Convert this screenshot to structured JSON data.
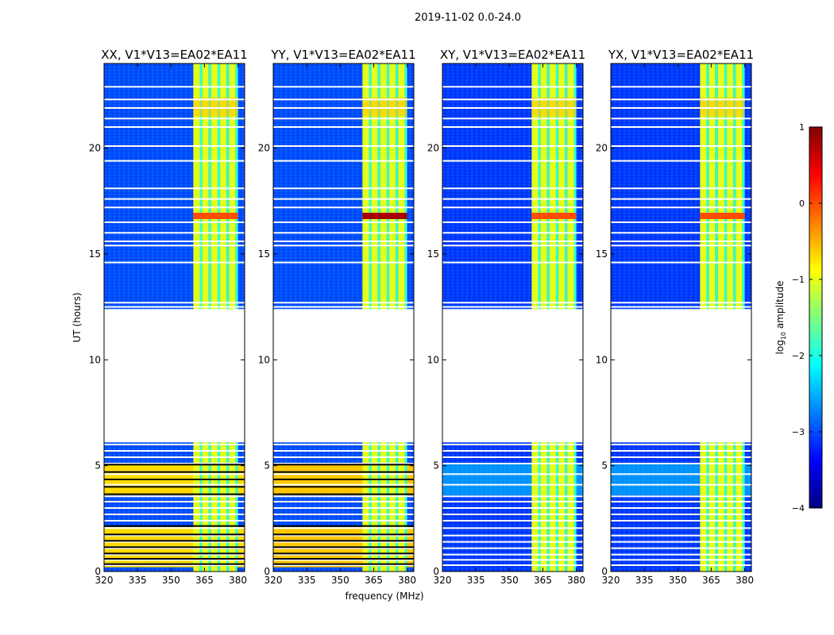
{
  "figure": {
    "suptitle": "2019-11-02 0.0-24.0",
    "xlabel": "frequency (MHz)",
    "ylabel": "UT (hours)"
  },
  "chart_data": {
    "type": "heatmap",
    "x": {
      "label": "frequency (MHz)",
      "range": [
        320,
        383
      ],
      "ticks": [
        320,
        335,
        350,
        365,
        380
      ],
      "tick_labels": [
        "320",
        "335",
        "350",
        "365",
        "380"
      ]
    },
    "y": {
      "label": "UT (hours)",
      "range": [
        0,
        24
      ],
      "ticks": [
        0,
        5,
        10,
        15,
        20
      ],
      "tick_labels": [
        "0",
        "5",
        "10",
        "15",
        "20"
      ]
    },
    "colorbar": {
      "label_prefix": "log",
      "label_sub": "10",
      "label_suffix": " amplitude",
      "range": [
        -4,
        1
      ],
      "ticks": [
        -4,
        -3,
        -2,
        -1,
        0,
        1
      ],
      "tick_labels": [
        "−4",
        "−3",
        "−2",
        "−1",
        "0",
        "1"
      ],
      "colormap": "jet",
      "colormap_stops": [
        "#00007f",
        "#0000ff",
        "#007fff",
        "#00ffff",
        "#7fff7f",
        "#ffff00",
        "#ff7f00",
        "#ff0000",
        "#7f0000"
      ]
    },
    "panels": [
      {
        "title": "XX, V1*V13=EA02*EA11",
        "no_data_ut": [
          6.1,
          12.4
        ],
        "background_level": -3.0,
        "rfi_band_mhz": [
          360,
          380
        ],
        "rfi_level": -1.0,
        "rfi_peak_ut": 16.8,
        "rfi_peak_level": 0.0,
        "high_amplitude_ut": [
          [
            3.6,
            5.1
          ],
          [
            0.2,
            2.1
          ]
        ],
        "high_amplitude_level": -0.7
      },
      {
        "title": "YY, V1*V13=EA02*EA11",
        "no_data_ut": [
          6.1,
          12.4
        ],
        "background_level": -3.0,
        "rfi_band_mhz": [
          360,
          380
        ],
        "rfi_level": -1.0,
        "rfi_peak_ut": 16.8,
        "rfi_peak_level": 0.8,
        "high_amplitude_ut": [
          [
            3.6,
            5.1
          ],
          [
            0.2,
            2.1
          ]
        ],
        "high_amplitude_level": -0.6
      },
      {
        "title": "XY, V1*V13=EA02*EA11",
        "no_data_ut": [
          6.1,
          12.4
        ],
        "background_level": -3.1,
        "rfi_band_mhz": [
          360,
          380
        ],
        "rfi_level": -1.0,
        "rfi_peak_ut": 16.8,
        "rfi_peak_level": 0.0,
        "high_amplitude_ut": [],
        "high_amplitude_level": -2.3
      },
      {
        "title": "YX, V1*V13=EA02*EA11",
        "no_data_ut": [
          6.1,
          12.4
        ],
        "background_level": -3.1,
        "rfi_band_mhz": [
          360,
          380
        ],
        "rfi_level": -1.0,
        "rfi_peak_ut": 16.8,
        "rfi_peak_level": 0.0,
        "high_amplitude_ut": [],
        "high_amplitude_level": -2.3
      }
    ],
    "flagged_ut": [
      0.3,
      0.55,
      0.8,
      1.1,
      1.4,
      1.7,
      2.05,
      2.4,
      2.7,
      3.0,
      3.3,
      3.55,
      4.1,
      4.6,
      5.1,
      5.4,
      5.7,
      6.0,
      12.5,
      12.7,
      14.6,
      15.4,
      15.6,
      16.0,
      16.5,
      17.2,
      17.6,
      18.1,
      19.4,
      20.1,
      21.0,
      21.4,
      21.9,
      22.3,
      22.9
    ]
  }
}
